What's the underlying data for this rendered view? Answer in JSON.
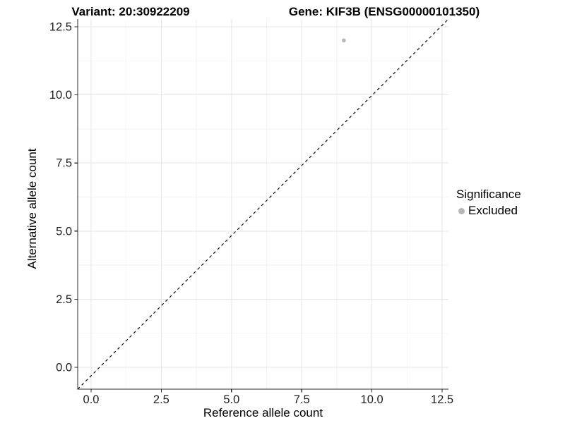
{
  "titles": {
    "left": "Variant: 20:30922209",
    "right": "Gene: KIF3B (ENSG00000101350)"
  },
  "axes": {
    "x": {
      "label": "Reference allele count",
      "tick_labels": [
        "0.0",
        "2.5",
        "5.0",
        "7.5",
        "10.0",
        "12.5"
      ]
    },
    "y": {
      "label": "Alternative allele count",
      "tick_labels": [
        "0.0",
        "2.5",
        "5.0",
        "7.5",
        "10.0",
        "12.5"
      ]
    }
  },
  "legend": {
    "title": "Significance",
    "items": [
      {
        "label": "Excluded",
        "color": "#b5b5b5",
        "marker": "circle"
      }
    ]
  },
  "chart_data": {
    "type": "scatter",
    "title": "Variant: 20:30922209  /  Gene: KIF3B (ENSG00000101350)",
    "xlabel": "Reference allele count",
    "ylabel": "Alternative allele count",
    "xlim": [
      -0.5,
      12.7
    ],
    "ylim": [
      -0.8,
      12.8
    ],
    "x_ticks": [
      0,
      2.5,
      5,
      7.5,
      10,
      12.5
    ],
    "y_ticks": [
      0,
      2.5,
      5,
      7.5,
      10,
      12.5
    ],
    "grid": "major+minor",
    "legend_position": "right",
    "series": [
      {
        "name": "Excluded",
        "color": "#b5b5b5",
        "points": [
          {
            "x": 9,
            "y": 12
          }
        ]
      }
    ],
    "reference_line": {
      "type": "identity",
      "slope": 1,
      "intercept": 0,
      "linetype": "dashed",
      "color": "#000000"
    }
  },
  "colors": {
    "background": "#ffffff",
    "axis_line": "#2b2b2b",
    "tick_label": "#1f1f1f",
    "grid_major": "#e6e6e6",
    "grid_minor": "#f2f2f2",
    "point": "#b5b5b5"
  }
}
